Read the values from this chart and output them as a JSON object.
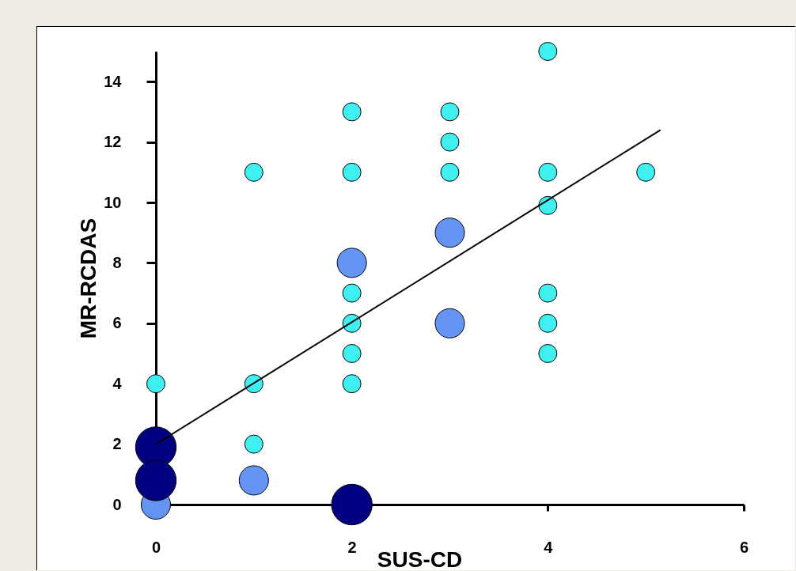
{
  "chart_data": {
    "type": "bubble",
    "xlabel": "SUS-CD",
    "ylabel": "MR-RCDAS",
    "xlim": [
      0,
      6
    ],
    "ylim": [
      0,
      15
    ],
    "xticks": [
      0,
      2,
      4,
      6
    ],
    "yticks": [
      0,
      2,
      4,
      6,
      8,
      10,
      12,
      14
    ],
    "grid": false,
    "marker": "circle",
    "series": [
      {
        "type": "line",
        "marker": "none",
        "color": "#000000",
        "x": [
          0,
          5.15
        ],
        "values": [
          2,
          12.4
        ]
      },
      {
        "color": "#40f0f0",
        "x": [
          0,
          1,
          1,
          1,
          2,
          2,
          2,
          2,
          2,
          2,
          3,
          3,
          3,
          4,
          4,
          4,
          4,
          4,
          4,
          5
        ],
        "values": [
          4,
          11,
          4,
          2,
          13,
          11,
          7,
          6,
          5,
          4,
          13,
          12,
          11,
          15,
          11,
          9.9,
          7,
          6,
          5,
          11
        ],
        "sizes": [
          0.2,
          0.2,
          0.2,
          0.2,
          0.2,
          0.2,
          0.2,
          0.2,
          0.2,
          0.2,
          0.2,
          0.2,
          0.2,
          0.2,
          0.2,
          0.2,
          0.2,
          0.2,
          0.2,
          0.2
        ]
      },
      {
        "color": "#6495f5",
        "x": [
          0,
          1,
          2,
          3,
          3
        ],
        "values": [
          0,
          0.8,
          8,
          9,
          6
        ],
        "sizes": [
          0.52,
          0.52,
          0.52,
          0.52,
          0.52
        ]
      },
      {
        "color": "#000080",
        "x": [
          0,
          0,
          2
        ],
        "values": [
          1.9,
          0.8,
          0
        ],
        "sizes": [
          1,
          1,
          1
        ]
      }
    ]
  }
}
